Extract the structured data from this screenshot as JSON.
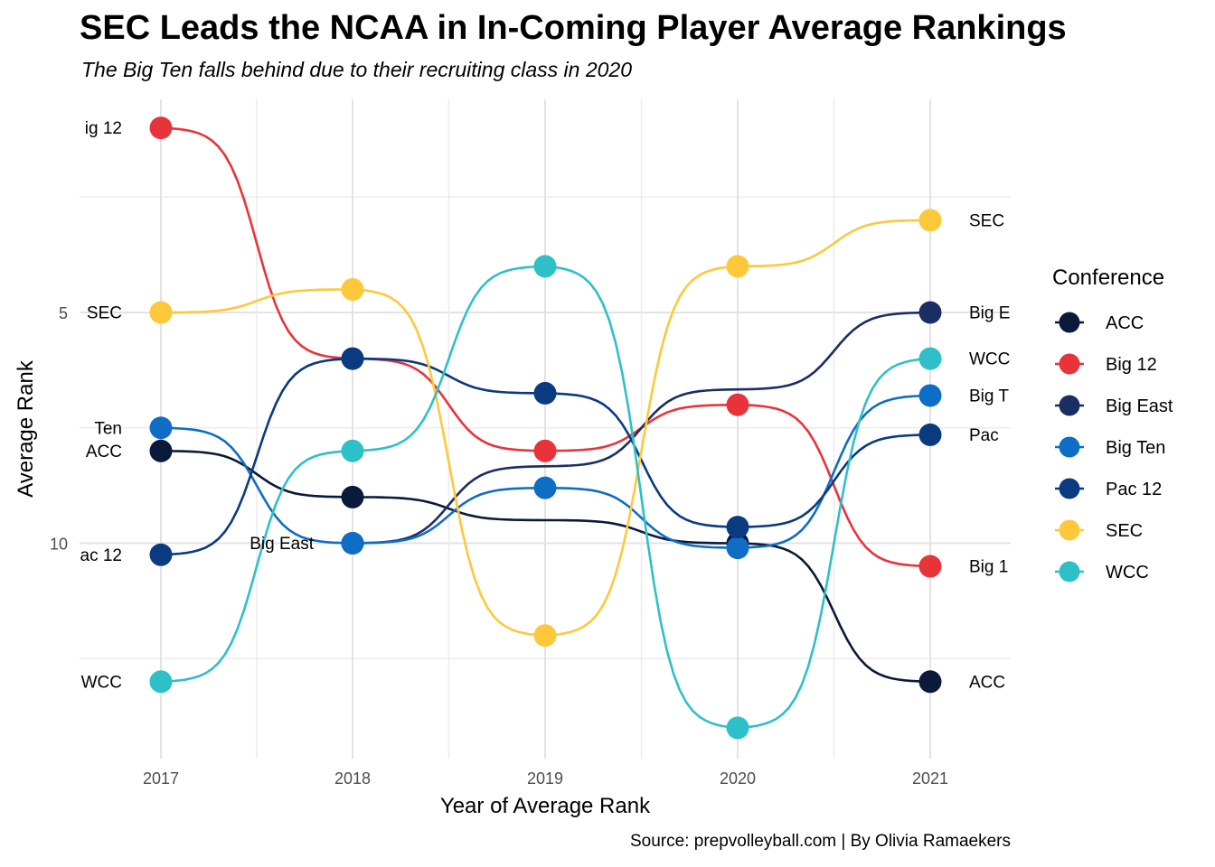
{
  "title": "SEC Leads the NCAA in In-Coming Player Average Rankings",
  "subtitle": "The Big Ten falls behind  due to their recruiting class in 2020",
  "caption": "Source: prepvolleyball.com | By Olivia Ramaekers",
  "chart_data": {
    "type": "line",
    "style": "bump chart with smoothed sigmoid lines and point markers",
    "title": "SEC Leads the NCAA in In-Coming Player Average Rankings",
    "xlabel": "Year of Average Rank",
    "ylabel": "Average Rank",
    "x": [
      2017,
      2018,
      2019,
      2020,
      2021
    ],
    "y_ticks": [
      5,
      10
    ],
    "ylim": [
      13.4,
      1
    ],
    "y_reversed": true,
    "grid": true,
    "legend": {
      "title": "Conference",
      "position": "right"
    },
    "series": [
      {
        "name": "ACC",
        "color": "#0A1A3A",
        "values": [
          8.0,
          9.0,
          null,
          10.0,
          13.0
        ],
        "start_label": "ACC",
        "end_label": "ACC"
      },
      {
        "name": "Big 12",
        "color": "#E8333A",
        "values": [
          1.0,
          6.0,
          8.0,
          7.0,
          10.5
        ],
        "start_label": "ig 12",
        "end_label": "Big 1"
      },
      {
        "name": "Big East",
        "color": "#1A2E63",
        "values": [
          null,
          10.0,
          null,
          null,
          5.0
        ],
        "start_label": "Big East",
        "end_label": "Big E"
      },
      {
        "name": "Big Ten",
        "color": "#0E6DC5",
        "values": [
          7.5,
          10.0,
          8.8,
          10.1,
          6.8
        ],
        "start_label": "Ten",
        "end_label": "Big T"
      },
      {
        "name": "Pac 12",
        "color": "#0A3A80",
        "values": [
          10.25,
          6.0,
          6.75,
          9.65,
          7.65
        ],
        "start_label": "ac 12",
        "end_label": "Pac"
      },
      {
        "name": "SEC",
        "color": "#FFC83A",
        "values": [
          5.0,
          4.5,
          12.0,
          4.0,
          3.0
        ],
        "start_label": "SEC",
        "end_label": "SEC"
      },
      {
        "name": "WCC",
        "color": "#2EC0C8",
        "values": [
          13.0,
          8.0,
          4.0,
          14.0,
          6.0
        ],
        "start_label": "WCC",
        "end_label": "WCC"
      }
    ]
  }
}
